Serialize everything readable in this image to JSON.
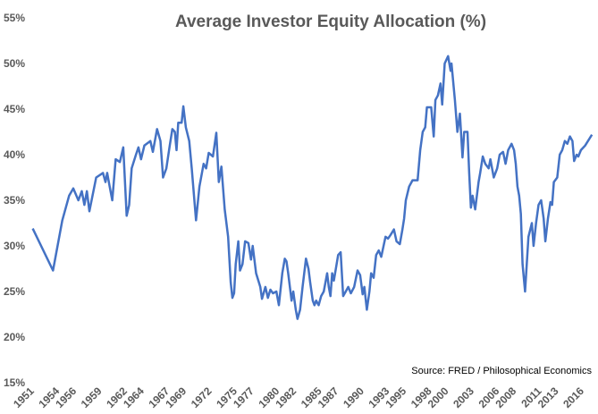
{
  "chart_data": {
    "type": "line",
    "title": "Average Investor Equity Allocation (%)",
    "annotation": "Source: FRED / Philosophical Economics",
    "xlim": [
      1950.5,
      2017.6
    ],
    "xticks": [
      1951,
      1954,
      1956,
      1959,
      1962,
      1964,
      1967,
      1969,
      1972,
      1975,
      1977,
      1980,
      1982,
      1985,
      1987,
      1990,
      1993,
      1995,
      1998,
      2000,
      2003,
      2006,
      2008,
      2011,
      2013,
      2016
    ],
    "ylim": [
      15,
      55
    ],
    "yticks": [
      {
        "value": 15,
        "label": "15%"
      },
      {
        "value": 20,
        "label": "20%"
      },
      {
        "value": 25,
        "label": "25%"
      },
      {
        "value": 30,
        "label": "30%"
      },
      {
        "value": 35,
        "label": "35%"
      },
      {
        "value": 40,
        "label": "40%"
      },
      {
        "value": 45,
        "label": "45%"
      },
      {
        "value": 50,
        "label": "50%"
      },
      {
        "value": 55,
        "label": "55%"
      }
    ],
    "grid": false,
    "x": [
      1951.2,
      1953.6,
      1954.7,
      1955.5,
      1956.0,
      1956.6,
      1957.0,
      1957.3,
      1957.6,
      1957.9,
      1958.7,
      1959.5,
      1959.8,
      1960.0,
      1960.3,
      1960.6,
      1961.0,
      1961.5,
      1961.9,
      1962.3,
      1962.6,
      1962.9,
      1963.4,
      1963.7,
      1964.0,
      1964.4,
      1965.1,
      1965.4,
      1965.9,
      1966.3,
      1966.6,
      1967.0,
      1967.4,
      1967.7,
      1968.0,
      1968.2,
      1968.4,
      1968.8,
      1969.0,
      1969.3,
      1969.7,
      1970.0,
      1970.5,
      1970.9,
      1971.4,
      1971.7,
      1972.0,
      1972.5,
      1972.9,
      1973.2,
      1973.5,
      1973.9,
      1974.3,
      1974.6,
      1974.8,
      1975.0,
      1975.2,
      1975.5,
      1975.7,
      1976.0,
      1976.3,
      1976.7,
      1977.0,
      1977.2,
      1977.6,
      1978.1,
      1978.3,
      1978.7,
      1979.0,
      1979.3,
      1979.6,
      1980.0,
      1980.3,
      1980.7,
      1981.0,
      1981.2,
      1981.4,
      1981.8,
      1982.0,
      1982.3,
      1982.5,
      1982.8,
      1983.1,
      1983.5,
      1983.8,
      1984.0,
      1984.3,
      1984.5,
      1984.7,
      1985.0,
      1985.3,
      1985.6,
      1986.0,
      1986.2,
      1986.4,
      1986.6,
      1986.8,
      1987.3,
      1987.6,
      1987.9,
      1988.2,
      1988.5,
      1988.8,
      1989.2,
      1989.6,
      1989.9,
      1990.2,
      1990.4,
      1990.7,
      1991.0,
      1991.2,
      1991.5,
      1991.8,
      1992.1,
      1992.4,
      1992.9,
      1993.2,
      1993.5,
      1993.9,
      1994.2,
      1994.6,
      1994.9,
      1995.1,
      1995.3,
      1995.7,
      1996.1,
      1996.7,
      1997.0,
      1997.3,
      1997.6,
      1997.8,
      1998.3,
      1998.6,
      1998.8,
      1999.1,
      1999.4,
      1999.6,
      1999.9,
      2000.3,
      2000.6,
      2000.7,
      2001.1,
      2001.4,
      2001.7,
      2002.0,
      2002.2,
      2002.6,
      2002.8,
      2003.0,
      2003.2,
      2003.5,
      2003.9,
      2004.1,
      2004.4,
      2004.7,
      2005.1,
      2005.3,
      2005.7,
      2006.1,
      2006.4,
      2006.8,
      2007.1,
      2007.4,
      2007.8,
      2008.1,
      2008.3,
      2008.5,
      2008.7,
      2008.9,
      2009.1,
      2009.4,
      2009.6,
      2009.8,
      2010.2,
      2010.4,
      2010.7,
      2011.0,
      2011.3,
      2011.6,
      2011.8,
      2012.1,
      2012.4,
      2012.6,
      2012.8,
      2013.2,
      2013.5,
      2013.8,
      2014.1,
      2014.4,
      2014.7,
      2015.0,
      2015.2,
      2015.5,
      2015.7,
      2016.0,
      2016.5,
      2017.3
    ],
    "series": [
      {
        "color": "#4472c4",
        "values": [
          31.9,
          27.3,
          32.8,
          35.5,
          36.3,
          35,
          36,
          34.5,
          36,
          33.8,
          37.5,
          38,
          37,
          38,
          36.5,
          35,
          39.5,
          39.2,
          40.8,
          33.3,
          34.5,
          38.5,
          40,
          40.8,
          39.5,
          41,
          41.5,
          40.3,
          42.8,
          41.5,
          37.5,
          38.5,
          41,
          42.8,
          42.5,
          40.5,
          43.5,
          43.5,
          45.3,
          43,
          41.5,
          38.5,
          32.8,
          36.5,
          39,
          38.5,
          40.2,
          39.8,
          42.4,
          37,
          38.7,
          34,
          31,
          26,
          24.3,
          24.8,
          28,
          30.5,
          27.3,
          28,
          30.5,
          30.3,
          28.5,
          30,
          27,
          25.5,
          24.2,
          25.5,
          24.3,
          25.2,
          24.8,
          25,
          23.5,
          27,
          28.6,
          28.3,
          27,
          24,
          25,
          23,
          22,
          23,
          25.5,
          28.6,
          27.5,
          26,
          24,
          23.5,
          24,
          23.5,
          24.5,
          25,
          27,
          25.5,
          24.5,
          27,
          26.2,
          29,
          29.3,
          24.5,
          25,
          25.5,
          24.8,
          25.5,
          27.3,
          26.8,
          24.7,
          25.5,
          23,
          25,
          27,
          26.5,
          29,
          29.5,
          28.8,
          31,
          30.8,
          31.2,
          31.8,
          30.5,
          30.2,
          31.8,
          33,
          35,
          36.5,
          37.2,
          37.2,
          40.5,
          42.5,
          43,
          45.2,
          45.2,
          42,
          46,
          46.5,
          47.8,
          45.5,
          50,
          50.8,
          49.2,
          50,
          46,
          42.5,
          44.5,
          39.7,
          42.5,
          42.5,
          38,
          34.2,
          35.5,
          34,
          37,
          38,
          39.8,
          39,
          38.5,
          39.5,
          37.5,
          38.5,
          40,
          40.3,
          39,
          40.5,
          41.2,
          40.5,
          39,
          36.5,
          35.5,
          33.5,
          28,
          25,
          28,
          31,
          32.5,
          30,
          32.5,
          34.5,
          35,
          33,
          30.5,
          33,
          34.8,
          34.5,
          37,
          37.5,
          40,
          40.5,
          41.5,
          41.2,
          42,
          41.5,
          39.3,
          40,
          39.8,
          40.5,
          41,
          42.2
        ]
      }
    ]
  }
}
